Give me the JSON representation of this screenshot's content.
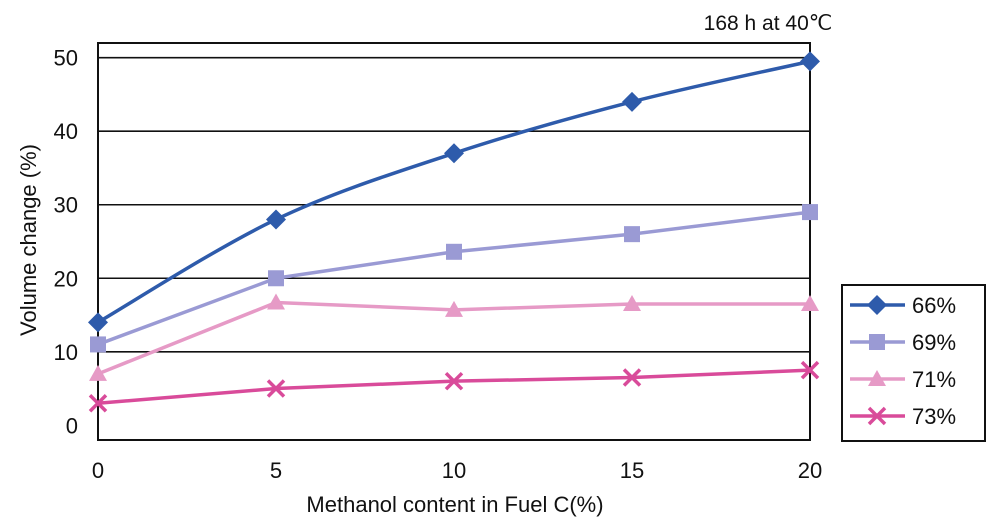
{
  "chart_data": {
    "type": "line",
    "title": "168 h at 40℃",
    "xlabel": "Methanol content in Fuel C(%)",
    "ylabel": "Volume change (%)",
    "x": [
      0,
      5,
      10,
      15,
      20
    ],
    "x_ticks": [
      "0",
      "5",
      "10",
      "15",
      "20"
    ],
    "ylim": [
      -2,
      52
    ],
    "y_ticks": [
      0,
      10,
      20,
      30,
      40,
      50
    ],
    "grid": "horizontal",
    "legend_position": "right",
    "series": [
      {
        "name": "66%",
        "color": "#2e5bab",
        "marker": "diamond",
        "values": [
          14,
          28,
          37,
          44,
          49.5
        ]
      },
      {
        "name": "69%",
        "color": "#9a9ad4",
        "marker": "square",
        "values": [
          11,
          20,
          23.6,
          26,
          29
        ]
      },
      {
        "name": "71%",
        "color": "#e69ac6",
        "marker": "triangle",
        "values": [
          7,
          16.7,
          15.7,
          16.5,
          16.5
        ]
      },
      {
        "name": "73%",
        "color": "#d94b9a",
        "marker": "x",
        "values": [
          3,
          5,
          6,
          6.5,
          7.5
        ]
      }
    ]
  }
}
